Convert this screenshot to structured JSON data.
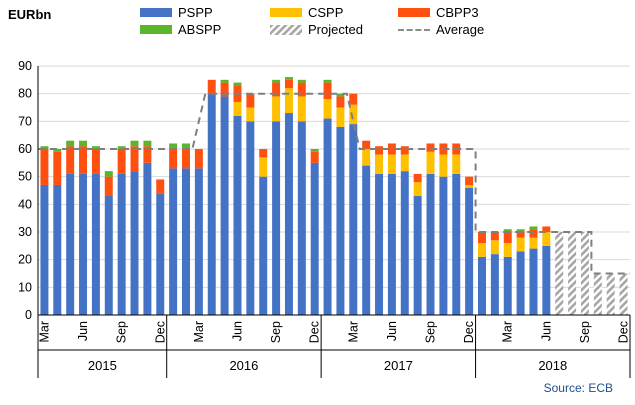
{
  "chart_data": {
    "type": "bar",
    "stacked": true,
    "ylabel": "EURbn",
    "ylim": [
      0,
      90
    ],
    "yticks": [
      0,
      10,
      20,
      30,
      40,
      50,
      60,
      70,
      80,
      90
    ],
    "source": "Source: ECB",
    "categories": [
      "2015-03",
      "2015-04",
      "2015-05",
      "2015-06",
      "2015-07",
      "2015-08",
      "2015-09",
      "2015-10",
      "2015-11",
      "2015-12",
      "2016-01",
      "2016-02",
      "2016-03",
      "2016-04",
      "2016-05",
      "2016-06",
      "2016-07",
      "2016-08",
      "2016-09",
      "2016-10",
      "2016-11",
      "2016-12",
      "2017-01",
      "2017-02",
      "2017-03",
      "2017-04",
      "2017-05",
      "2017-06",
      "2017-07",
      "2017-08",
      "2017-09",
      "2017-10",
      "2017-11",
      "2017-12",
      "2018-01",
      "2018-02",
      "2018-03",
      "2018-04",
      "2018-05",
      "2018-06",
      "2018-07",
      "2018-08",
      "2018-09",
      "2018-10",
      "2018-11",
      "2018-12"
    ],
    "series": [
      {
        "name": "PSPP",
        "color": "#4472C4",
        "values": [
          47,
          47,
          51,
          51,
          51,
          43,
          51,
          52,
          55,
          44,
          53,
          53,
          53,
          80,
          79,
          72,
          70,
          50,
          70,
          73,
          70,
          55,
          71,
          68,
          69,
          54,
          51,
          51,
          52,
          43,
          51,
          50,
          51,
          46,
          21,
          22,
          21,
          23,
          24,
          25,
          null,
          null,
          null,
          null,
          null,
          null
        ]
      },
      {
        "name": "CSPP",
        "color": "#FFC000",
        "values": [
          0,
          0,
          0,
          0,
          0,
          0,
          0,
          0,
          0,
          0,
          0,
          0,
          0,
          0,
          0,
          5,
          5,
          7,
          9,
          9,
          9,
          0,
          7,
          7,
          7,
          6,
          7,
          7,
          6,
          5,
          8,
          8,
          7,
          1,
          5,
          5,
          5,
          5,
          4,
          5,
          null,
          null,
          null,
          null,
          null,
          null
        ]
      },
      {
        "name": "CBPP3",
        "color": "#FF5010",
        "values": [
          13,
          12,
          10,
          10,
          9,
          7,
          9,
          9,
          6,
          5,
          7,
          7,
          7,
          5,
          5,
          6,
          5,
          3,
          5,
          3,
          5,
          4,
          6,
          4,
          4,
          3,
          3,
          4,
          3,
          3,
          3,
          4,
          4,
          3,
          4,
          3,
          4,
          2,
          3,
          2,
          null,
          null,
          null,
          null,
          null,
          null
        ]
      },
      {
        "name": "ABSPP",
        "color": "#5AB52A",
        "values": [
          1,
          1,
          2,
          2,
          1,
          2,
          1,
          2,
          2,
          0,
          2,
          2,
          0,
          0,
          1,
          1,
          0,
          0,
          1,
          1,
          1,
          1,
          1,
          1,
          0,
          0,
          0,
          0,
          0,
          0,
          0,
          0,
          0,
          0,
          0,
          0,
          1,
          1,
          1,
          0,
          null,
          null,
          null,
          null,
          null,
          null
        ]
      },
      {
        "name": "Projected",
        "color": "#A6A6A6",
        "values": [
          null,
          null,
          null,
          null,
          null,
          null,
          null,
          null,
          null,
          null,
          null,
          null,
          null,
          null,
          null,
          null,
          null,
          null,
          null,
          null,
          null,
          null,
          null,
          null,
          null,
          null,
          null,
          null,
          null,
          null,
          null,
          null,
          null,
          null,
          null,
          null,
          null,
          null,
          null,
          null,
          30,
          30,
          30,
          15,
          15,
          15
        ]
      }
    ],
    "average": [
      {
        "from": "2015-03",
        "to": "2016-02",
        "value": 60
      },
      {
        "from": "2016-04",
        "to": "2017-02",
        "value": 80
      },
      {
        "from": "2017-04",
        "to": "2017-12",
        "value": 60
      },
      {
        "from": "2018-01",
        "to": "2018-09",
        "value": 30
      },
      {
        "from": "2018-10",
        "to": "2018-12",
        "value": 15
      }
    ],
    "x_tick_labels": [
      "Mar",
      "Jun",
      "Sep",
      "Dec",
      "Mar",
      "Jun",
      "Sep",
      "Dec",
      "Mar",
      "Jun",
      "Sep",
      "Dec",
      "Mar",
      "Jun",
      "Sep",
      "Dec"
    ],
    "x_tick_months": [
      "2015-03",
      "2015-06",
      "2015-09",
      "2015-12",
      "2016-03",
      "2016-06",
      "2016-09",
      "2016-12",
      "2017-03",
      "2017-06",
      "2017-09",
      "2017-12",
      "2018-03",
      "2018-06",
      "2018-09",
      "2018-12"
    ],
    "years": [
      "2015",
      "2016",
      "2017",
      "2018"
    ],
    "legend": {
      "pspp": "PSPP",
      "cspp": "CSPP",
      "cbpp3": "CBPP3",
      "abspp": "ABSPP",
      "projected": "Projected",
      "average": "Average"
    },
    "colors": {
      "pspp": "#4472C4",
      "cspp": "#FFC000",
      "cbpp3": "#FF5010",
      "abspp": "#5AB52A",
      "projected": "#A6A6A6",
      "average": "#7F7F7F"
    }
  }
}
